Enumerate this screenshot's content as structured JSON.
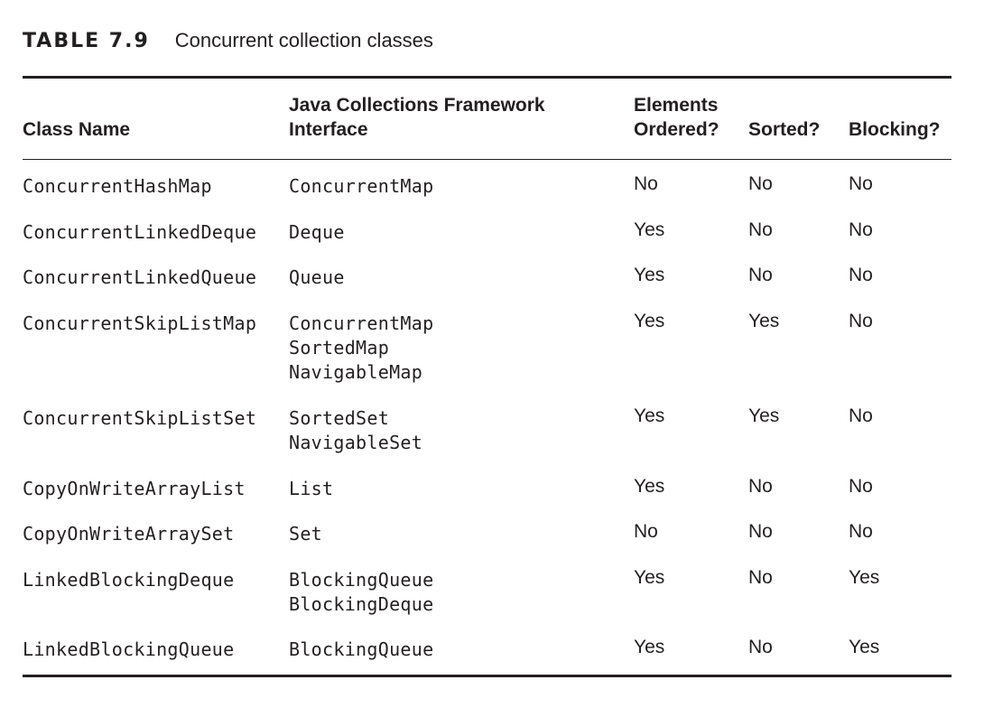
{
  "caption": {
    "label": "TABLE 7.9",
    "title": "Concurrent collection classes"
  },
  "table": {
    "headers": [
      "Class Name",
      "Java Collections Framework\nInterface",
      "Elements\nOrdered?",
      "Sorted?",
      "Blocking?"
    ],
    "rows": [
      {
        "class_name": "ConcurrentHashMap",
        "interfaces": [
          "ConcurrentMap"
        ],
        "ordered": "No",
        "sorted": "No",
        "blocking": "No"
      },
      {
        "class_name": "ConcurrentLinkedDeque",
        "interfaces": [
          "Deque"
        ],
        "ordered": "Yes",
        "sorted": "No",
        "blocking": "No"
      },
      {
        "class_name": "ConcurrentLinkedQueue",
        "interfaces": [
          "Queue"
        ],
        "ordered": "Yes",
        "sorted": "No",
        "blocking": "No"
      },
      {
        "class_name": "ConcurrentSkipListMap",
        "interfaces": [
          "ConcurrentMap",
          "SortedMap",
          "NavigableMap"
        ],
        "ordered": "Yes",
        "sorted": "Yes",
        "blocking": "No"
      },
      {
        "class_name": "ConcurrentSkipListSet",
        "interfaces": [
          "SortedSet",
          "NavigableSet"
        ],
        "ordered": "Yes",
        "sorted": "Yes",
        "blocking": "No"
      },
      {
        "class_name": "CopyOnWriteArrayList",
        "interfaces": [
          "List"
        ],
        "ordered": "Yes",
        "sorted": "No",
        "blocking": "No"
      },
      {
        "class_name": "CopyOnWriteArraySet",
        "interfaces": [
          "Set"
        ],
        "ordered": "No",
        "sorted": "No",
        "blocking": "No"
      },
      {
        "class_name": "LinkedBlockingDeque",
        "interfaces": [
          "BlockingQueue",
          "BlockingDeque"
        ],
        "ordered": "Yes",
        "sorted": "No",
        "blocking": "Yes"
      },
      {
        "class_name": "LinkedBlockingQueue",
        "interfaces": [
          "BlockingQueue"
        ],
        "ordered": "Yes",
        "sorted": "No",
        "blocking": "Yes"
      }
    ]
  }
}
